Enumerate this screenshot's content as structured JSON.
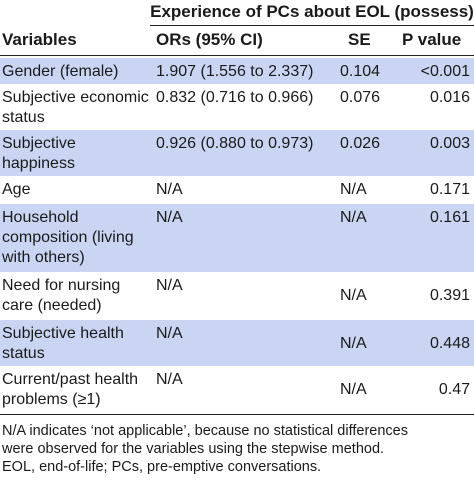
{
  "table": {
    "group_header": "Experience of PCs about EOL (possess)",
    "columns": [
      "Variables",
      "ORs (95% CI)",
      "SE",
      "P value"
    ],
    "rows": [
      {
        "variable": "Gender (female)",
        "or": "1.907 (1.556 to 2.337)",
        "se": "0.104",
        "p": "<0.001"
      },
      {
        "variable": "Subjective economic status",
        "or": "0.832 (0.716 to 0.966)",
        "se": "0.076",
        "p": "0.016"
      },
      {
        "variable": "Subjective happiness",
        "or": "0.926 (0.880 to 0.973)",
        "se": "0.026",
        "p": "0.003"
      },
      {
        "variable": "Age",
        "or": "N/A",
        "se": "N/A",
        "p": "0.171"
      },
      {
        "variable": "Household composition (living with others)",
        "or": "N/A",
        "se": "N/A",
        "p": "0.161"
      },
      {
        "variable": "Need for nursing care (needed)",
        "or": "N/A",
        "se": "N/A",
        "p": "0.391"
      },
      {
        "variable": "Subjective health status",
        "or": "N/A",
        "se": "N/A",
        "p": "0.448"
      },
      {
        "variable": "Current/past health problems (≥1)",
        "or": "N/A",
        "se": "N/A",
        "p": "0.47"
      }
    ]
  },
  "footnote": {
    "line1": "N/A indicates ‘not applicable’, because no statistical differences",
    "line2": "were observed for the variables using the stepwise method.",
    "line3": "EOL, end-of-life; PCs, pre-emptive conversations."
  }
}
